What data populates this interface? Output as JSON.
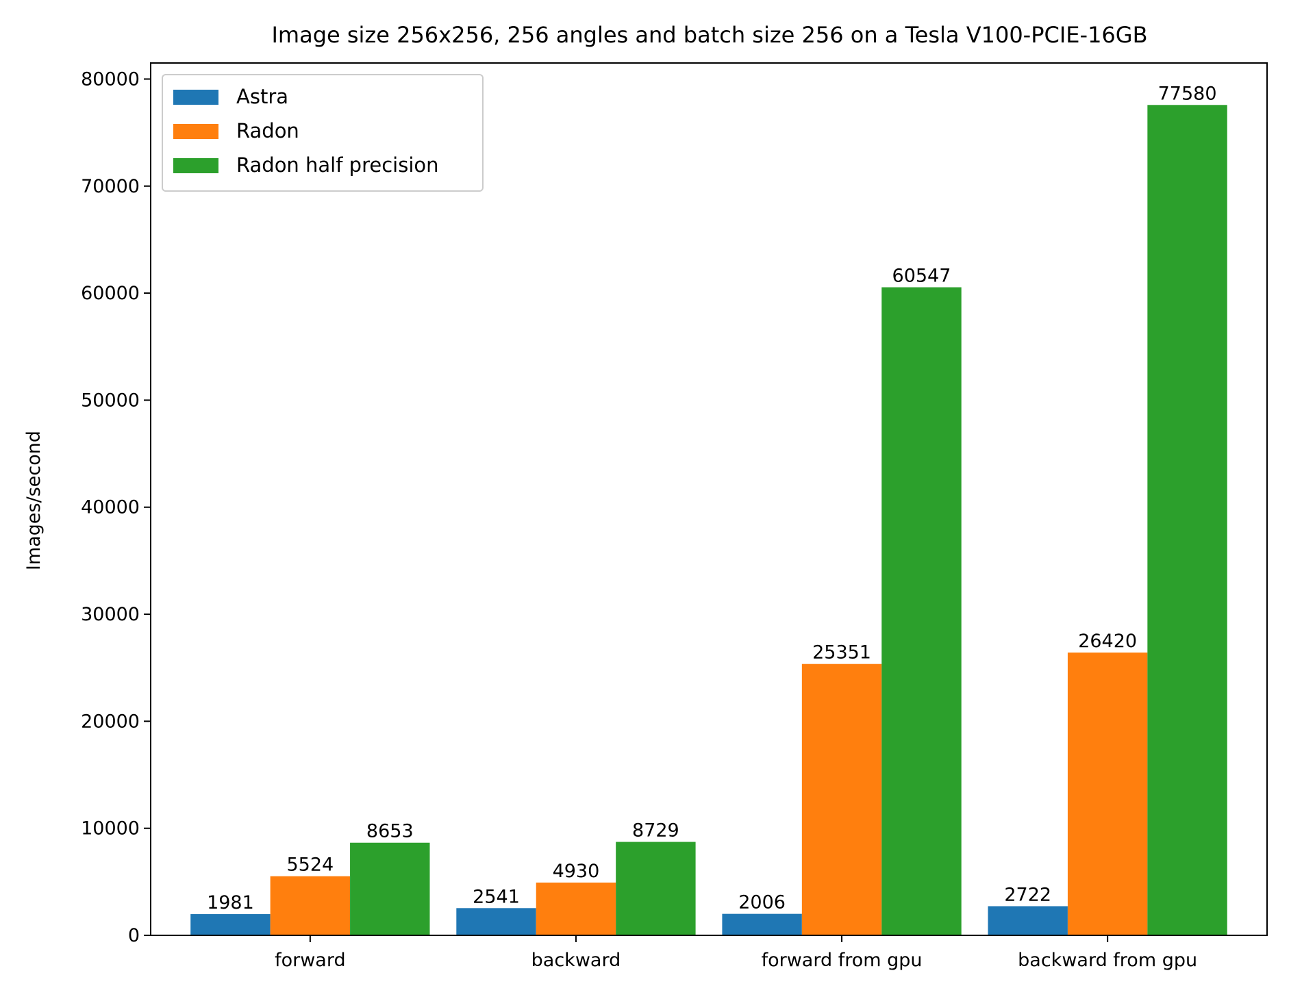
{
  "chart_data": {
    "type": "bar",
    "title": "Image size 256x256, 256 angles and batch size 256 on a Tesla V100-PCIE-16GB",
    "xlabel": "",
    "ylabel": "Images/second",
    "categories": [
      "forward",
      "backward",
      "forward from gpu",
      "backward from gpu"
    ],
    "series": [
      {
        "name": "Astra",
        "color": "#1f77b4",
        "values": [
          1981,
          2541,
          2006,
          2722
        ]
      },
      {
        "name": "Radon",
        "color": "#ff7f0e",
        "values": [
          5524,
          4930,
          25351,
          26420
        ]
      },
      {
        "name": "Radon half precision",
        "color": "#2ca02c",
        "values": [
          8653,
          8729,
          60547,
          77580
        ]
      }
    ],
    "ylim": [
      0,
      81500
    ],
    "yticks": [
      0,
      10000,
      20000,
      30000,
      40000,
      50000,
      60000,
      70000,
      80000
    ],
    "legend_position": "top-left",
    "grid": false,
    "data_labels": true
  }
}
